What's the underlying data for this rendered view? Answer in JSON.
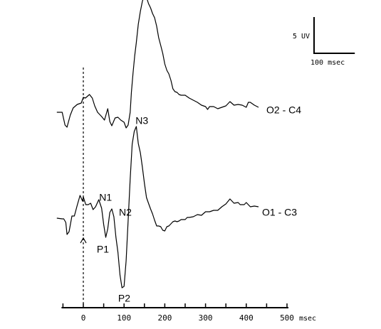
{
  "chart_data": {
    "type": "line",
    "x_unit": "msec",
    "xlim": [
      -50,
      500
    ],
    "x_ticks": [
      0,
      100,
      200,
      300,
      400,
      500
    ],
    "x_tick_labels": [
      "0",
      "100",
      "200",
      "300",
      "400",
      "500"
    ],
    "stimulus_marker_ms": 0,
    "grid": false,
    "scale_bar": {
      "amplitude_label": "5 UV",
      "time_label": "100 msec"
    },
    "series": [
      {
        "name": "O2 - C4",
        "x": [
          -65,
          -52,
          -45,
          -40,
          -32,
          -25,
          -15,
          -5,
          0,
          5,
          15,
          22,
          28,
          35,
          45,
          52,
          60,
          65,
          70,
          78,
          85,
          92,
          100,
          105,
          110,
          115,
          118,
          122,
          126,
          130,
          135,
          140,
          145,
          150,
          155,
          160,
          165,
          170,
          175,
          180,
          185,
          190,
          195,
          200,
          205,
          210,
          215,
          220,
          225,
          230,
          235,
          240,
          250,
          260,
          270,
          280,
          290,
          300,
          305,
          310,
          320,
          330,
          340,
          350,
          360,
          370,
          380,
          390,
          400,
          405,
          410,
          420,
          430
        ],
        "y": [
          0.0,
          0.0,
          -1.8,
          -2.1,
          -0.4,
          0.6,
          1.1,
          1.3,
          2.1,
          2.0,
          2.5,
          2.0,
          0.9,
          0.0,
          -0.6,
          -1.1,
          0.5,
          -1.3,
          -1.9,
          -0.8,
          -0.7,
          -1.1,
          -1.4,
          -2.2,
          -1.8,
          0.0,
          2.8,
          5.5,
          7.9,
          9.8,
          12.4,
          14.2,
          15.6,
          16.5,
          16.2,
          15.3,
          14.7,
          13.9,
          13.3,
          12.1,
          10.5,
          9.4,
          8.3,
          6.8,
          5.9,
          5.4,
          4.5,
          3.3,
          2.9,
          2.8,
          2.5,
          2.4,
          2.4,
          2.0,
          1.7,
          1.4,
          1.0,
          0.8,
          0.4,
          0.8,
          0.8,
          0.5,
          0.7,
          0.9,
          1.5,
          1.0,
          1.1,
          1.0,
          0.7,
          1.4,
          1.4,
          1.0,
          0.7
        ]
      },
      {
        "name": "O1 - C3",
        "x": [
          -65,
          -52,
          -48,
          -43,
          -40,
          -35,
          -28,
          -22,
          -15,
          -8,
          -2,
          0,
          6,
          12,
          18,
          24,
          30,
          38,
          45,
          50,
          55,
          60,
          65,
          70,
          75,
          80,
          85,
          90,
          95,
          100,
          105,
          110,
          115,
          120,
          125,
          130,
          135,
          140,
          145,
          150,
          155,
          160,
          165,
          170,
          175,
          180,
          185,
          190,
          195,
          200,
          205,
          210,
          215,
          220,
          225,
          230,
          235,
          240,
          250,
          255,
          260,
          270,
          280,
          290,
          300,
          310,
          320,
          330,
          340,
          350,
          360,
          370,
          380,
          385,
          390,
          395,
          400,
          410,
          420,
          430
        ],
        "y": [
          -1.3,
          -1.4,
          -1.4,
          -1.9,
          -3.6,
          -3.2,
          -1.0,
          -1.0,
          0.5,
          1.9,
          1.1,
          1.7,
          0.6,
          0.6,
          0.8,
          -0.1,
          0.3,
          1.3,
          0.1,
          -2.2,
          -4.0,
          -2.8,
          -0.5,
          0.0,
          -1.1,
          -4.0,
          -6.1,
          -9.3,
          -11.1,
          -10.9,
          -7.3,
          -1.7,
          4.2,
          9.1,
          10.9,
          11.6,
          9.2,
          7.9,
          5.9,
          3.6,
          1.6,
          0.8,
          0.0,
          -0.7,
          -1.6,
          -2.4,
          -2.4,
          -2.5,
          -3.0,
          -3.1,
          -2.5,
          -2.4,
          -2.1,
          -1.8,
          -1.7,
          -1.8,
          -1.7,
          -1.5,
          -1.5,
          -1.2,
          -1.2,
          -1.1,
          -0.8,
          -0.9,
          -0.4,
          -0.4,
          -0.2,
          -0.2,
          0.3,
          0.7,
          1.4,
          0.8,
          0.9,
          0.6,
          0.6,
          0.6,
          0.9,
          0.3,
          0.4,
          0.3
        ]
      }
    ],
    "annotations": [
      {
        "series": "O1 - C3",
        "label": "N1",
        "x": 30,
        "y": 0.3
      },
      {
        "series": "O1 - C3",
        "label": "P1",
        "x": 55,
        "y": -4.0
      },
      {
        "series": "O1 - C3",
        "label": "N2",
        "x": 70,
        "y": 0.0
      },
      {
        "series": "O1 - C3",
        "label": "P2",
        "x": 97,
        "y": -11.1
      },
      {
        "series": "O1 - C3",
        "label": "N3",
        "x": 135,
        "y": 11.6
      }
    ]
  }
}
